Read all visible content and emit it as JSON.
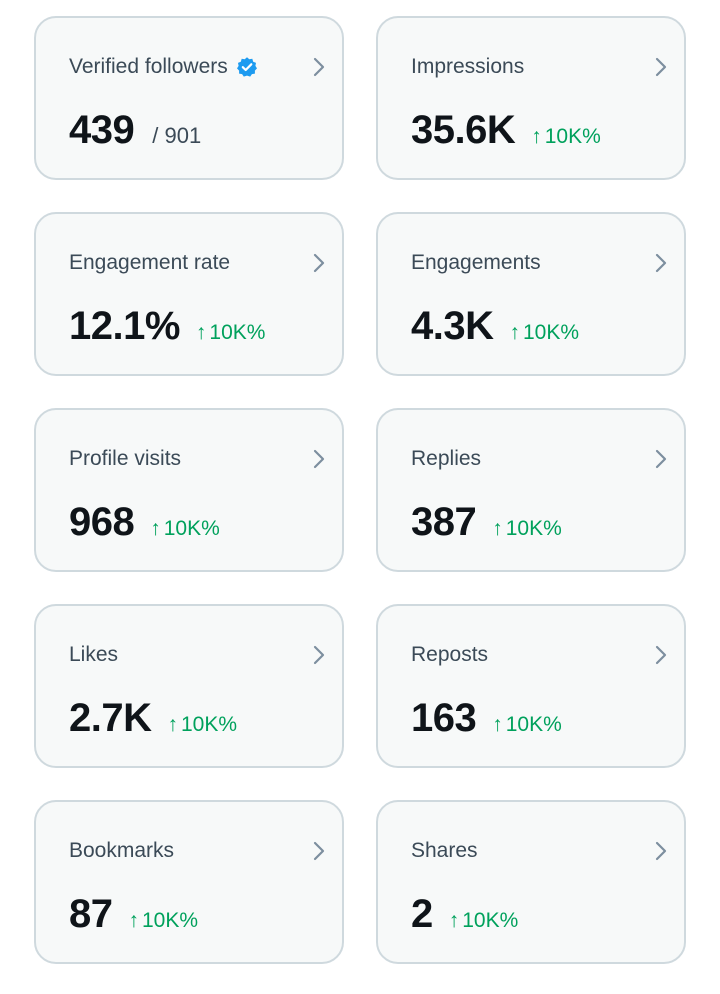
{
  "cards": [
    {
      "title": "Verified followers",
      "value": "439",
      "total": "/ 901"
    },
    {
      "title": "Impressions",
      "value": "35.6K",
      "change": "10K%"
    },
    {
      "title": "Engagement rate",
      "value": "12.1%",
      "change": "10K%"
    },
    {
      "title": "Engagements",
      "value": "4.3K",
      "change": "10K%"
    },
    {
      "title": "Profile visits",
      "value": "968",
      "change": "10K%"
    },
    {
      "title": "Replies",
      "value": "387",
      "change": "10K%"
    },
    {
      "title": "Likes",
      "value": "2.7K",
      "change": "10K%"
    },
    {
      "title": "Reposts",
      "value": "163",
      "change": "10K%"
    },
    {
      "title": "Bookmarks",
      "value": "87",
      "change": "10K%"
    },
    {
      "title": "Shares",
      "value": "2",
      "change": "10K%"
    }
  ],
  "symbols": {
    "up_arrow": "↑"
  },
  "colors": {
    "card_background": "#f7f9f9",
    "card_border": "#cfd9de",
    "value_text": "#0f1419",
    "label_text": "#3b4a57",
    "positive_change": "#00a15c",
    "verified_badge": "#1d9bf0",
    "chevron": "#7d8f9f"
  },
  "icons": {
    "verified": "verified-badge-icon",
    "chevron": "chevron-right-icon",
    "trend": "arrow-up-icon"
  }
}
